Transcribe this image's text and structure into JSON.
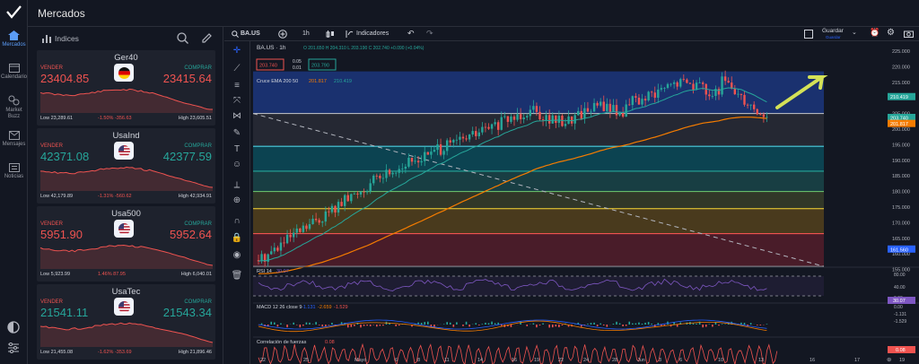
{
  "app": {
    "title": "Mercados"
  },
  "rail": [
    {
      "label": "Mercados",
      "icon": "home-icon"
    },
    {
      "label": "Calendario",
      "icon": "calendar-icon"
    },
    {
      "label": "Market Buzz",
      "icon": "market-buzz-icon"
    },
    {
      "label": "Mensajes",
      "icon": "messages-icon"
    },
    {
      "label": "Noticias",
      "icon": "news-icon"
    }
  ],
  "panel": {
    "label": "Indices"
  },
  "cards": [
    {
      "name": "Ger40",
      "flag": "germany-flag-icon",
      "sell_label": "VENDER",
      "buy_label": "COMPRAR",
      "sell": "23404.85",
      "buy": "23415.64",
      "low": "Low 23,289.61",
      "change": "-1.50%   -356.63",
      "high": "High 23,605.51",
      "dir": "down"
    },
    {
      "name": "UsaInd",
      "flag": "usa-flag-icon",
      "sell_label": "VENDER",
      "buy_label": "COMPRAR",
      "sell": "42371.08",
      "buy": "42377.59",
      "low": "Low 42,179.89",
      "change": "-1.31%   -560.62",
      "high": "High 42,934.91",
      "dir": "up"
    },
    {
      "name": "Usa500",
      "flag": "usa-flag-icon",
      "sell_label": "VENDER",
      "buy_label": "COMPRAR",
      "sell": "5951.90",
      "buy": "5952.64",
      "low": "Low 5,923.99",
      "change": "1.46%   87.95",
      "high": "High 6,040.01",
      "dir": "down"
    },
    {
      "name": "UsaTec",
      "flag": "usa-flag-icon",
      "sell_label": "VENDER",
      "buy_label": "COMPRAR",
      "sell": "21541.11",
      "buy": "21543.34",
      "low": "Low 21,455.08",
      "change": "-1.62%   -353.69",
      "high": "High 21,896.46",
      "dir": "up"
    }
  ],
  "toolbar": {
    "symbol": "BA.US",
    "interval": "1h",
    "indicators": "Indicadores",
    "save": "Guardar",
    "save_sub": "Guardar"
  },
  "legend": {
    "name": "BA.US · 1h",
    "ohlc": "O 201.650  H 204.310  L 203.190  C 202.740  +0.090 (+0.04%)",
    "sell": "203.740",
    "spread": "0.05",
    "qty": "0.01",
    "buy": "203.790",
    "ema_label": "Cruce EMA 200 50",
    "ema_v1": "201.817",
    "ema_v2": "210.419"
  },
  "price_axis": [
    "225.000",
    "220.000",
    "215.000",
    "210.000",
    "205.000",
    "200.000",
    "195.000",
    "190.000",
    "185.000",
    "180.000",
    "175.000",
    "170.000",
    "165.000",
    "160.000",
    "155.000"
  ],
  "price_tags": [
    {
      "value": "210.419",
      "color": "#26a69a"
    },
    {
      "value": "203.740",
      "color": "#26a69a"
    },
    {
      "value": "201.817",
      "color": "#f57c00"
    },
    {
      "value": "161.560",
      "color": "#2962ff"
    }
  ],
  "rsi": {
    "label": "RSI 14",
    "value": "30.07",
    "axis": [
      "80.00",
      "40.00",
      "0.00"
    ]
  },
  "macd": {
    "label": "MACD 12 26 close 9",
    "v1": "-1.131",
    "v2": "-2.659",
    "v3": "-1.529",
    "axis": [
      "0.00",
      "-1.131",
      "-1.529"
    ]
  },
  "force": {
    "label": "Correlación de fuerzas",
    "value": "0.08",
    "axis": [
      "0.08"
    ]
  },
  "time_axis": [
    "22",
    "25",
    "Mayo",
    "6",
    "8",
    "11",
    "14",
    "16",
    "19",
    "22",
    "24",
    "28",
    "Jun",
    "3",
    "6",
    "10",
    "13",
    "16",
    "17",
    "19"
  ],
  "colors": {
    "bg": "#131722",
    "up": "#26a69a",
    "down": "#ef5350",
    "accent": "#2962ff"
  }
}
